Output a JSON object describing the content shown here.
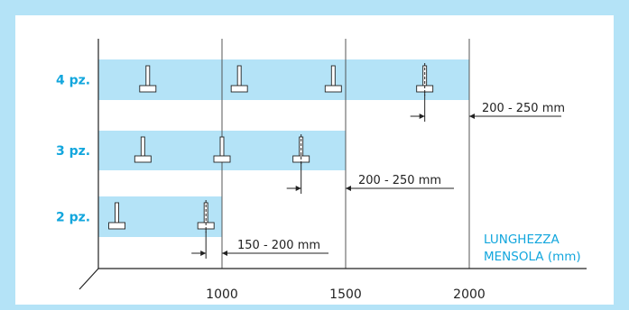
{
  "colors": {
    "frame": "#b4e3f7",
    "band": "#b4e3f7",
    "accent": "#12a6dd",
    "ink": "#222222",
    "bracket_fill": "#ffffff"
  },
  "rows": [
    {
      "label": "4 pz.",
      "band_end_mm": 2000,
      "bracket_positions_mm": [
        700,
        1070,
        1450,
        1820
      ],
      "dashed_index": 3,
      "dimension": "200 - 250 mm"
    },
    {
      "label": "3 pz.",
      "band_end_mm": 1500,
      "bracket_positions_mm": [
        680,
        1000,
        1320
      ],
      "dashed_index": 2,
      "dimension": "200 - 250 mm"
    },
    {
      "label": "2 pz.",
      "band_end_mm": 1000,
      "bracket_positions_mm": [
        575,
        935
      ],
      "dashed_index": 1,
      "dimension": "150 - 200 mm"
    }
  ],
  "x_ticks": [
    "1000",
    "1500",
    "2000"
  ],
  "x_tick_values": [
    1000,
    1500,
    2000
  ],
  "x_axis_title_line1": "LUNGHEZZA",
  "x_axis_title_line2": "MENSOLA (mm)",
  "scale": {
    "mm_min": 500,
    "mm_max": 2000
  }
}
